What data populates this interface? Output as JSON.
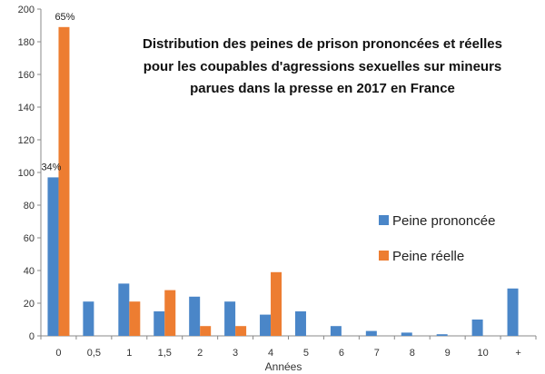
{
  "chart_data": {
    "type": "bar",
    "title_lines": [
      "Distribution des peines de prison prononcées et réelles",
      "pour les coupables d'agressions sexuelles sur mineurs",
      "parues dans la presse en 2017 en France"
    ],
    "xlabel": "Années",
    "ylabel": "",
    "ylim": [
      0,
      200
    ],
    "yticks": [
      0,
      20,
      40,
      60,
      80,
      100,
      120,
      140,
      160,
      180,
      200
    ],
    "grid": false,
    "legend_position": "right",
    "categories": [
      "0",
      "0,5",
      "1",
      "1,5",
      "2",
      "3",
      "4",
      "5",
      "6",
      "7",
      "8",
      "9",
      "10",
      "+"
    ],
    "series": [
      {
        "name": "Peine prononcée",
        "color": "#4a86c8",
        "values": [
          97,
          21,
          32,
          15,
          24,
          21,
          13,
          15,
          6,
          3,
          2,
          1,
          10,
          29
        ]
      },
      {
        "name": "Peine réelle",
        "color": "#ed7d31",
        "values": [
          189,
          0,
          21,
          28,
          6,
          6,
          39,
          0,
          0,
          0,
          0,
          0,
          0,
          0
        ]
      }
    ],
    "annotations": [
      {
        "text": "65%",
        "series": 1,
        "category": 0
      },
      {
        "text": "34%",
        "series": 0,
        "category": 0
      }
    ]
  }
}
